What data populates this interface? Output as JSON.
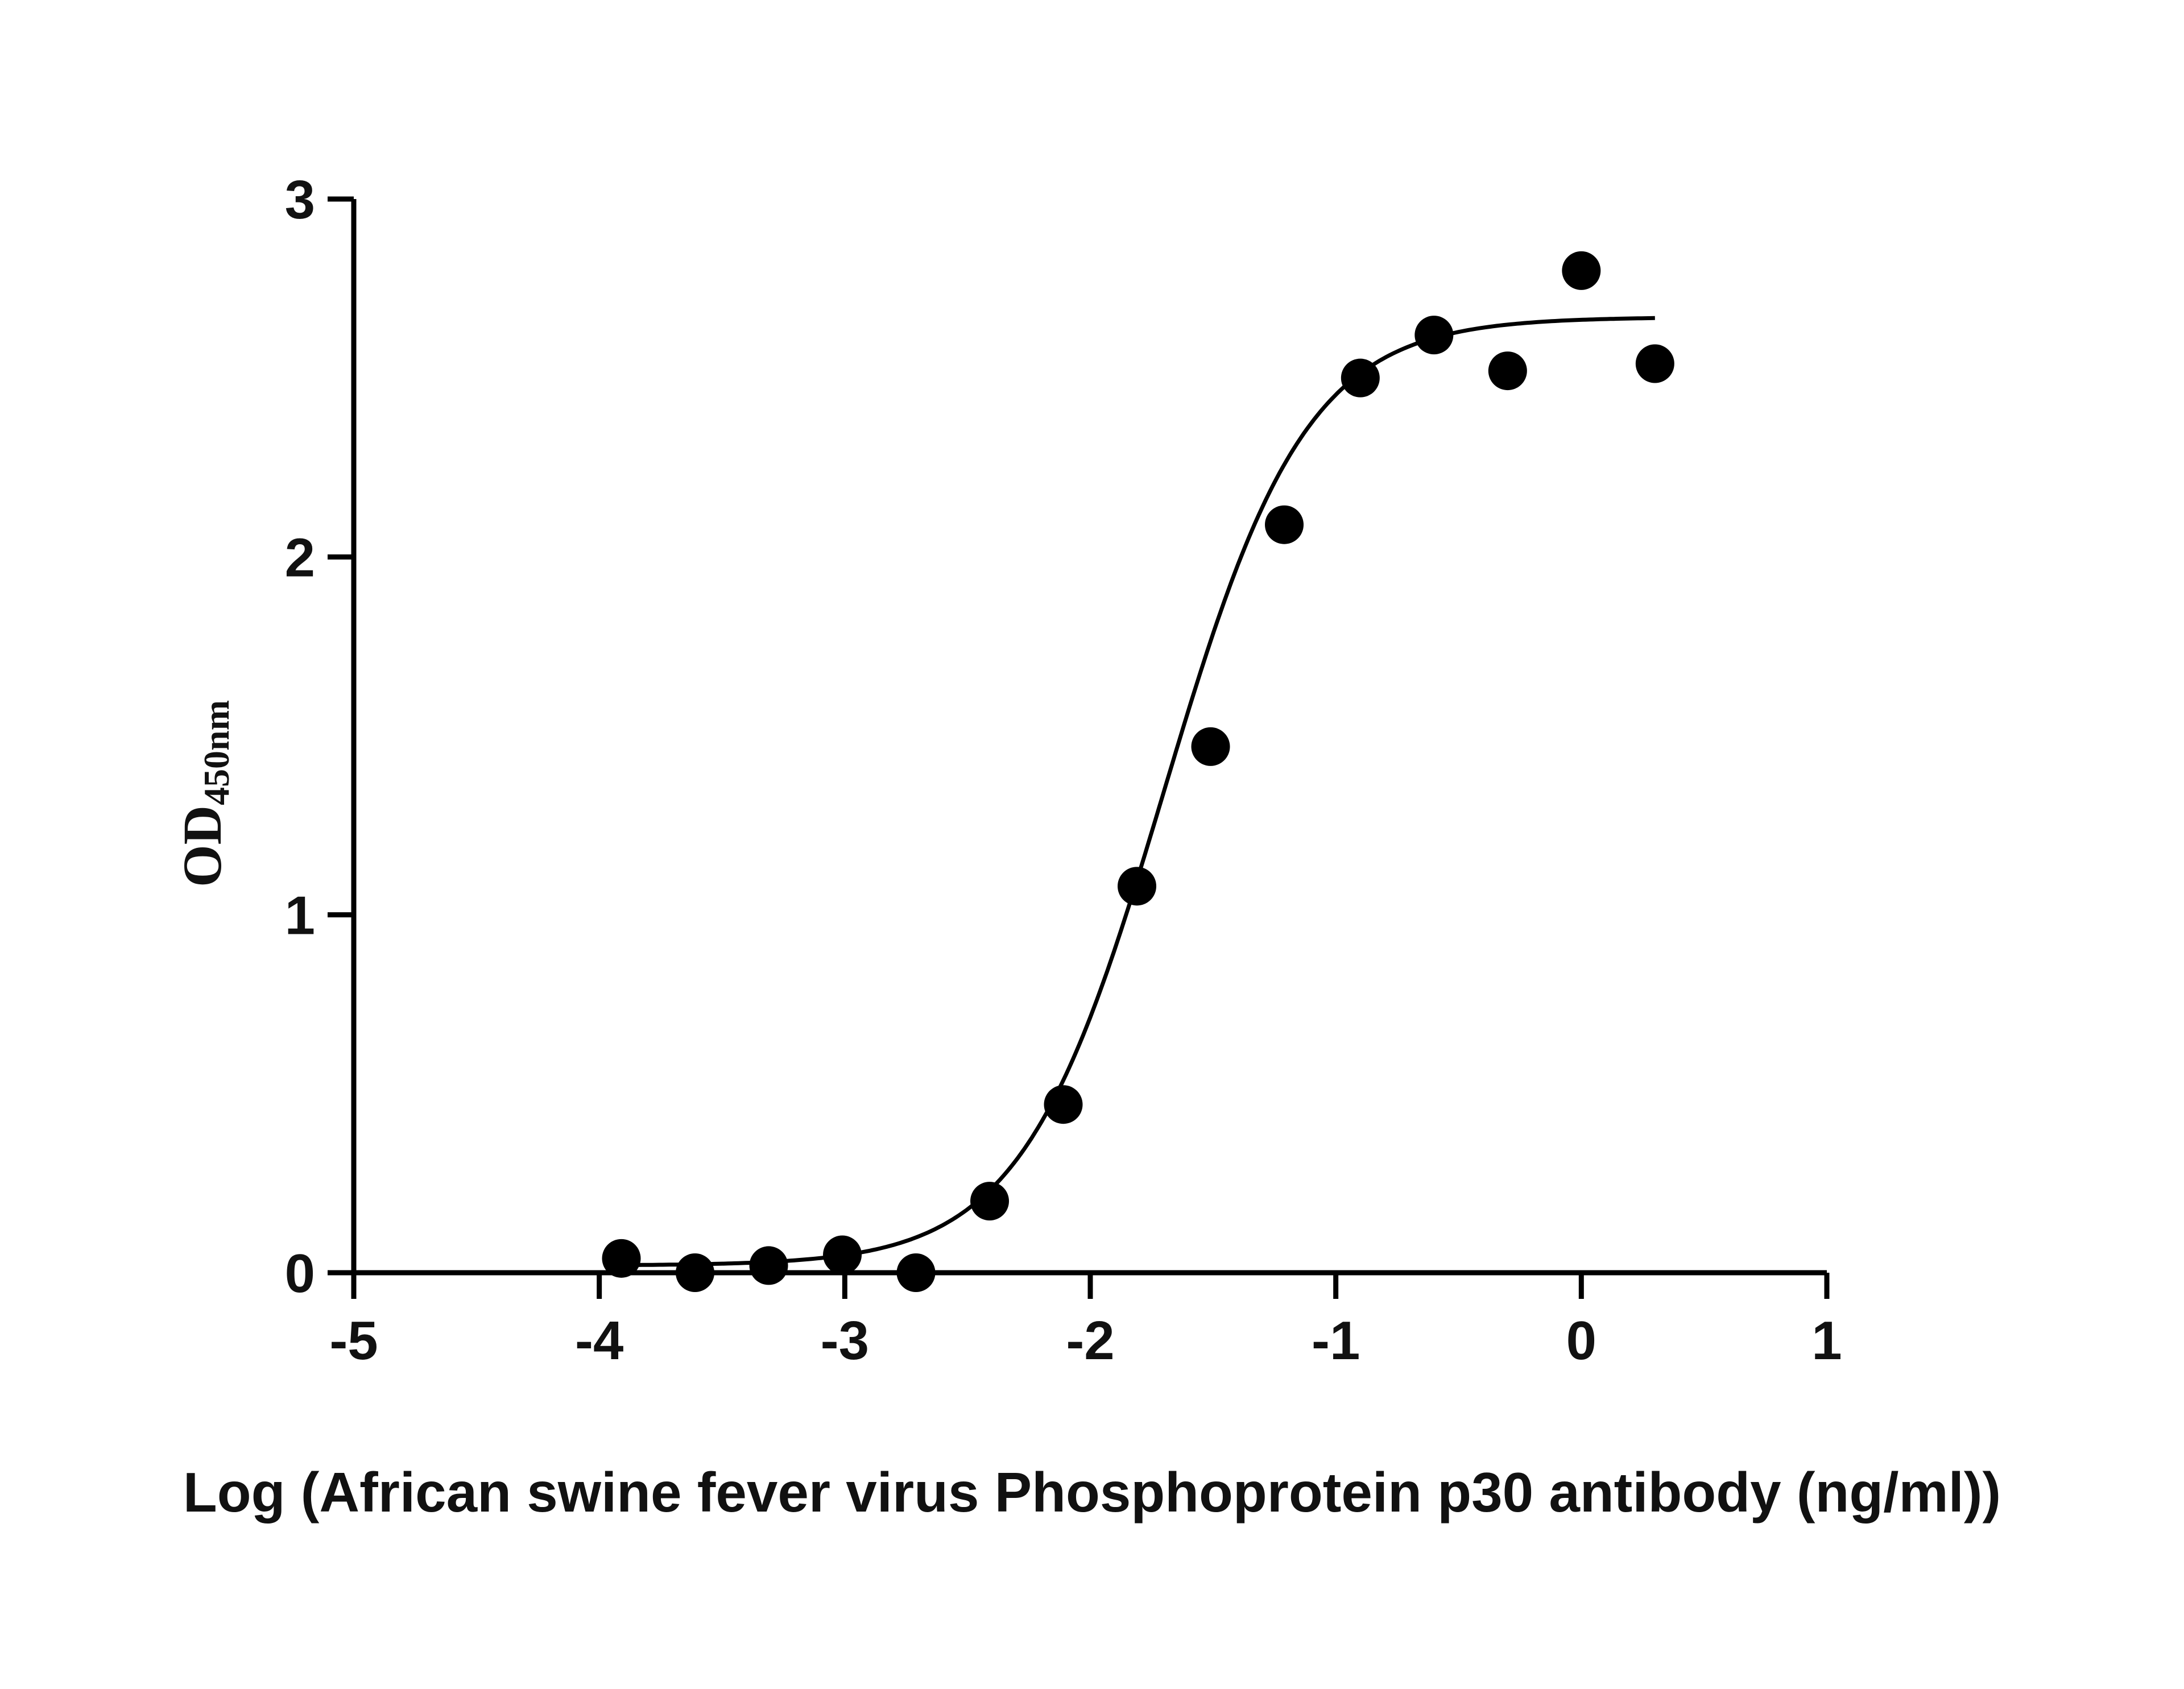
{
  "chart_data": {
    "type": "scatter",
    "title": "",
    "xlabel": "Log (African swine fever virus Phosphoprotein p30 antibody (ng/ml))",
    "ylabel": {
      "main": "OD",
      "subscript": "450nm"
    },
    "xlim": [
      -5,
      1
    ],
    "ylim": [
      0,
      3
    ],
    "x_ticks": [
      "-5",
      "-4",
      "-3",
      "-2",
      "-1",
      "0",
      "1"
    ],
    "y_ticks": [
      "0",
      "1",
      "2",
      "3"
    ],
    "grid": false,
    "legend": "none",
    "points": [
      {
        "x": -3.91,
        "y": 0.04
      },
      {
        "x": -3.61,
        "y": 0.0
      },
      {
        "x": -3.31,
        "y": 0.02
      },
      {
        "x": -3.01,
        "y": 0.05
      },
      {
        "x": -2.71,
        "y": 0.0
      },
      {
        "x": -2.41,
        "y": 0.2
      },
      {
        "x": -2.11,
        "y": 0.47
      },
      {
        "x": -1.81,
        "y": 1.08
      },
      {
        "x": -1.51,
        "y": 1.47
      },
      {
        "x": -1.21,
        "y": 2.09
      },
      {
        "x": -0.9,
        "y": 2.5
      },
      {
        "x": -0.6,
        "y": 2.62
      },
      {
        "x": -0.3,
        "y": 2.52
      },
      {
        "x": 0.0,
        "y": 2.8
      },
      {
        "x": 0.3,
        "y": 2.54
      }
    ],
    "fit": {
      "model": "four-parameter logistic",
      "bottom": 0.02,
      "top": 2.67,
      "log_ec50": -1.7,
      "hill_slope": 1.5,
      "x_range": [
        -3.91,
        0.3
      ]
    },
    "colors": {
      "marker": "#000000",
      "line": "#000000",
      "axis": "#000000"
    }
  }
}
